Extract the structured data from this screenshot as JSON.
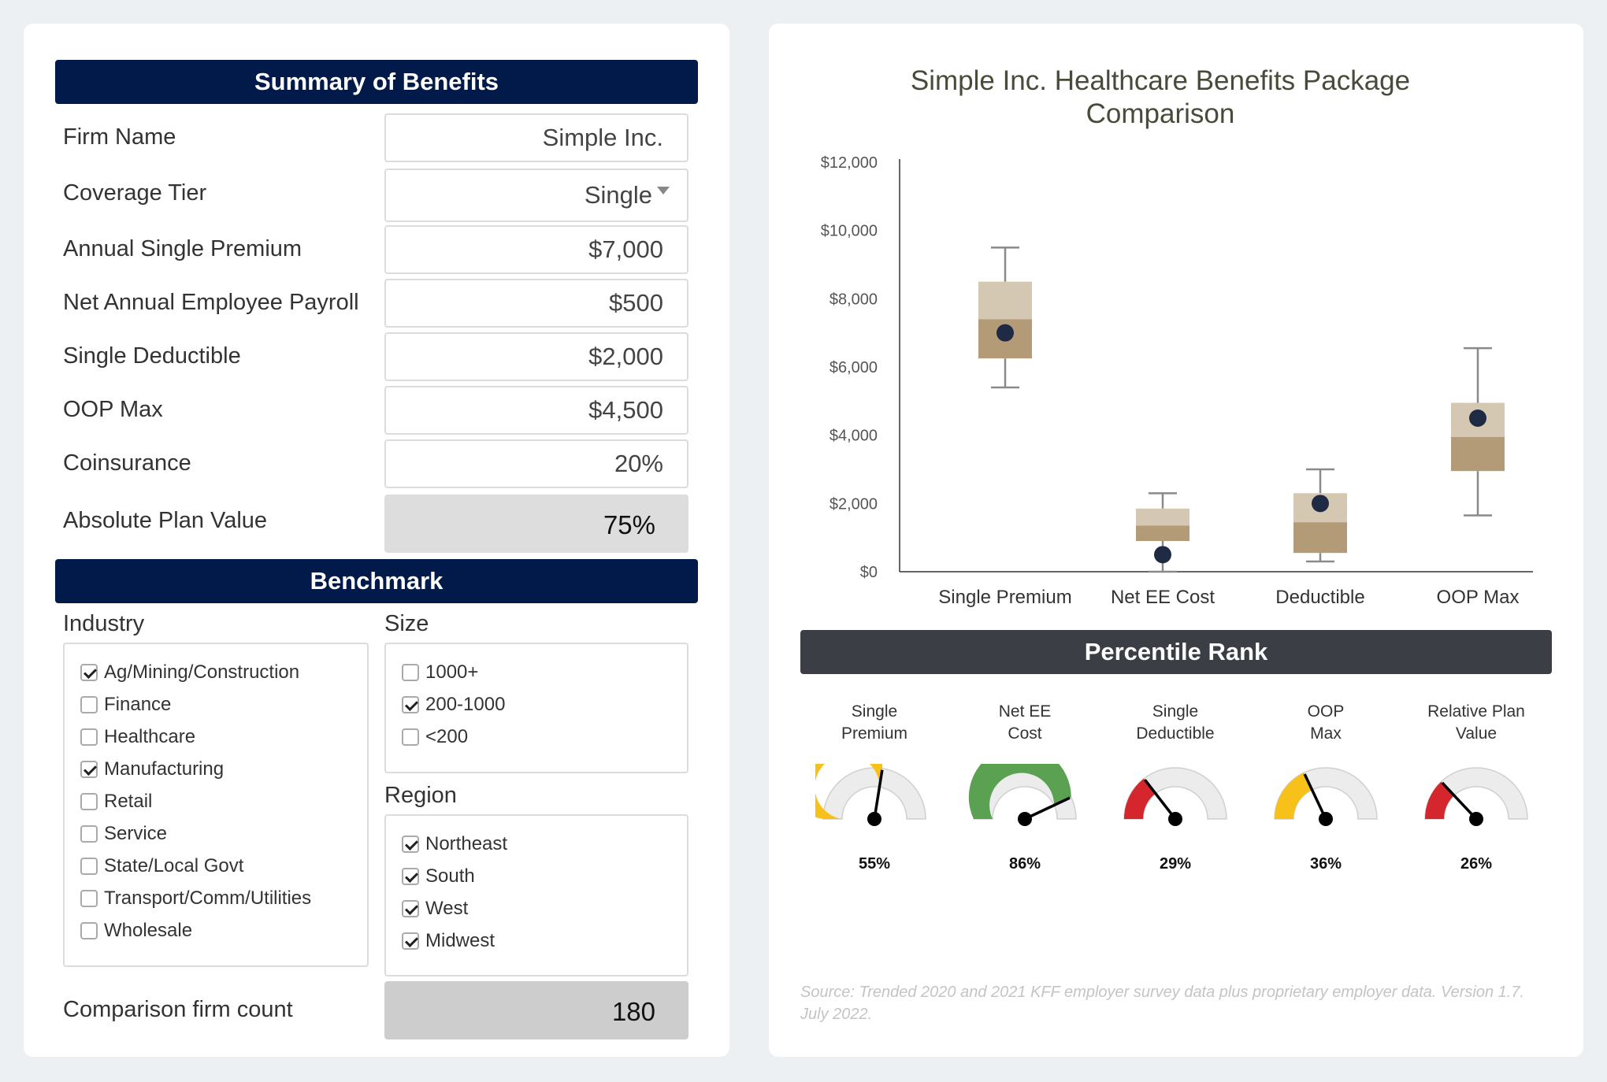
{
  "summary": {
    "title": "Summary of Benefits",
    "rows": [
      {
        "label": "Firm Name",
        "value": "Simple Inc."
      },
      {
        "label": "Coverage Tier",
        "value": "Single"
      },
      {
        "label": "Annual Single Premium",
        "value": "$7,000"
      },
      {
        "label": "Net Annual Employee Payroll",
        "value": "$500"
      },
      {
        "label": "Single Deductible",
        "value": "$2,000"
      },
      {
        "label": "OOP Max",
        "value": "$4,500"
      },
      {
        "label": "Coinsurance",
        "value": "20%"
      },
      {
        "label": "Absolute Plan Value",
        "value": "75%"
      }
    ]
  },
  "benchmark": {
    "title": "Benchmark",
    "industry_label": "Industry",
    "industries": [
      {
        "label": "Ag/Mining/Construction",
        "checked": true
      },
      {
        "label": "Finance",
        "checked": false
      },
      {
        "label": "Healthcare",
        "checked": false
      },
      {
        "label": "Manufacturing",
        "checked": true
      },
      {
        "label": "Retail",
        "checked": false
      },
      {
        "label": "Service",
        "checked": false
      },
      {
        "label": "State/Local Govt",
        "checked": false
      },
      {
        "label": "Transport/Comm/Utilities",
        "checked": false
      },
      {
        "label": "Wholesale",
        "checked": false
      }
    ],
    "size_label": "Size",
    "sizes": [
      {
        "label": "1000+",
        "checked": false
      },
      {
        "label": "200-1000",
        "checked": true
      },
      {
        "label": "<200",
        "checked": false
      }
    ],
    "region_label": "Region",
    "regions": [
      {
        "label": "Northeast",
        "checked": true
      },
      {
        "label": "South",
        "checked": true
      },
      {
        "label": "West",
        "checked": true
      },
      {
        "label": "Midwest",
        "checked": true
      }
    ],
    "count_label": "Comparison firm count",
    "count_value": "180"
  },
  "chart_data": {
    "type": "box",
    "title": "Simple Inc. Healthcare Benefits Package Comparison",
    "categories": [
      "Single Premium",
      "Net EE Cost",
      "Deductible",
      "OOP Max"
    ],
    "y_ticks": [
      "$0",
      "$2,000",
      "$4,000",
      "$6,000",
      "$8,000",
      "$10,000",
      "$12,000"
    ],
    "ylim": [
      0,
      12000
    ],
    "boxes": [
      {
        "min": 5400,
        "q1": 6250,
        "median": 7400,
        "q3": 8500,
        "max": 9500,
        "firm": 7000
      },
      {
        "min": 0,
        "q1": 900,
        "median": 1350,
        "q3": 1850,
        "max": 2300,
        "firm": 500
      },
      {
        "min": 300,
        "q1": 550,
        "median": 1450,
        "q3": 2300,
        "max": 3000,
        "firm": 2000
      },
      {
        "min": 1650,
        "q1": 2950,
        "median": 3950,
        "q3": 4950,
        "max": 6550,
        "firm": 4500
      }
    ],
    "colors": {
      "lower_box": "#b39b78",
      "upper_box": "#d5c8b3",
      "whisker": "#8a8a8a",
      "dot": "#1f2a44"
    }
  },
  "percentile": {
    "title": "Percentile Rank",
    "gauges": [
      {
        "label_line1": "Single",
        "label_line2": "Premium",
        "value": 55,
        "display": "55%",
        "color": "#f8c11a"
      },
      {
        "label_line1": "Net EE",
        "label_line2": "Cost",
        "value": 86,
        "display": "86%",
        "color": "#5aa151"
      },
      {
        "label_line1": "Single",
        "label_line2": "Deductible",
        "value": 29,
        "display": "29%",
        "color": "#d4262c"
      },
      {
        "label_line1": "OOP",
        "label_line2": "Max",
        "value": 36,
        "display": "36%",
        "color": "#f8c11a"
      },
      {
        "label_line1": "Relative Plan",
        "label_line2": "Value",
        "value": 26,
        "display": "26%",
        "color": "#d4262c"
      }
    ]
  },
  "source_note": "Source: Trended 2020 and 2021 KFF employer survey data plus proprietary employer data. Version 1.7. July 2022."
}
